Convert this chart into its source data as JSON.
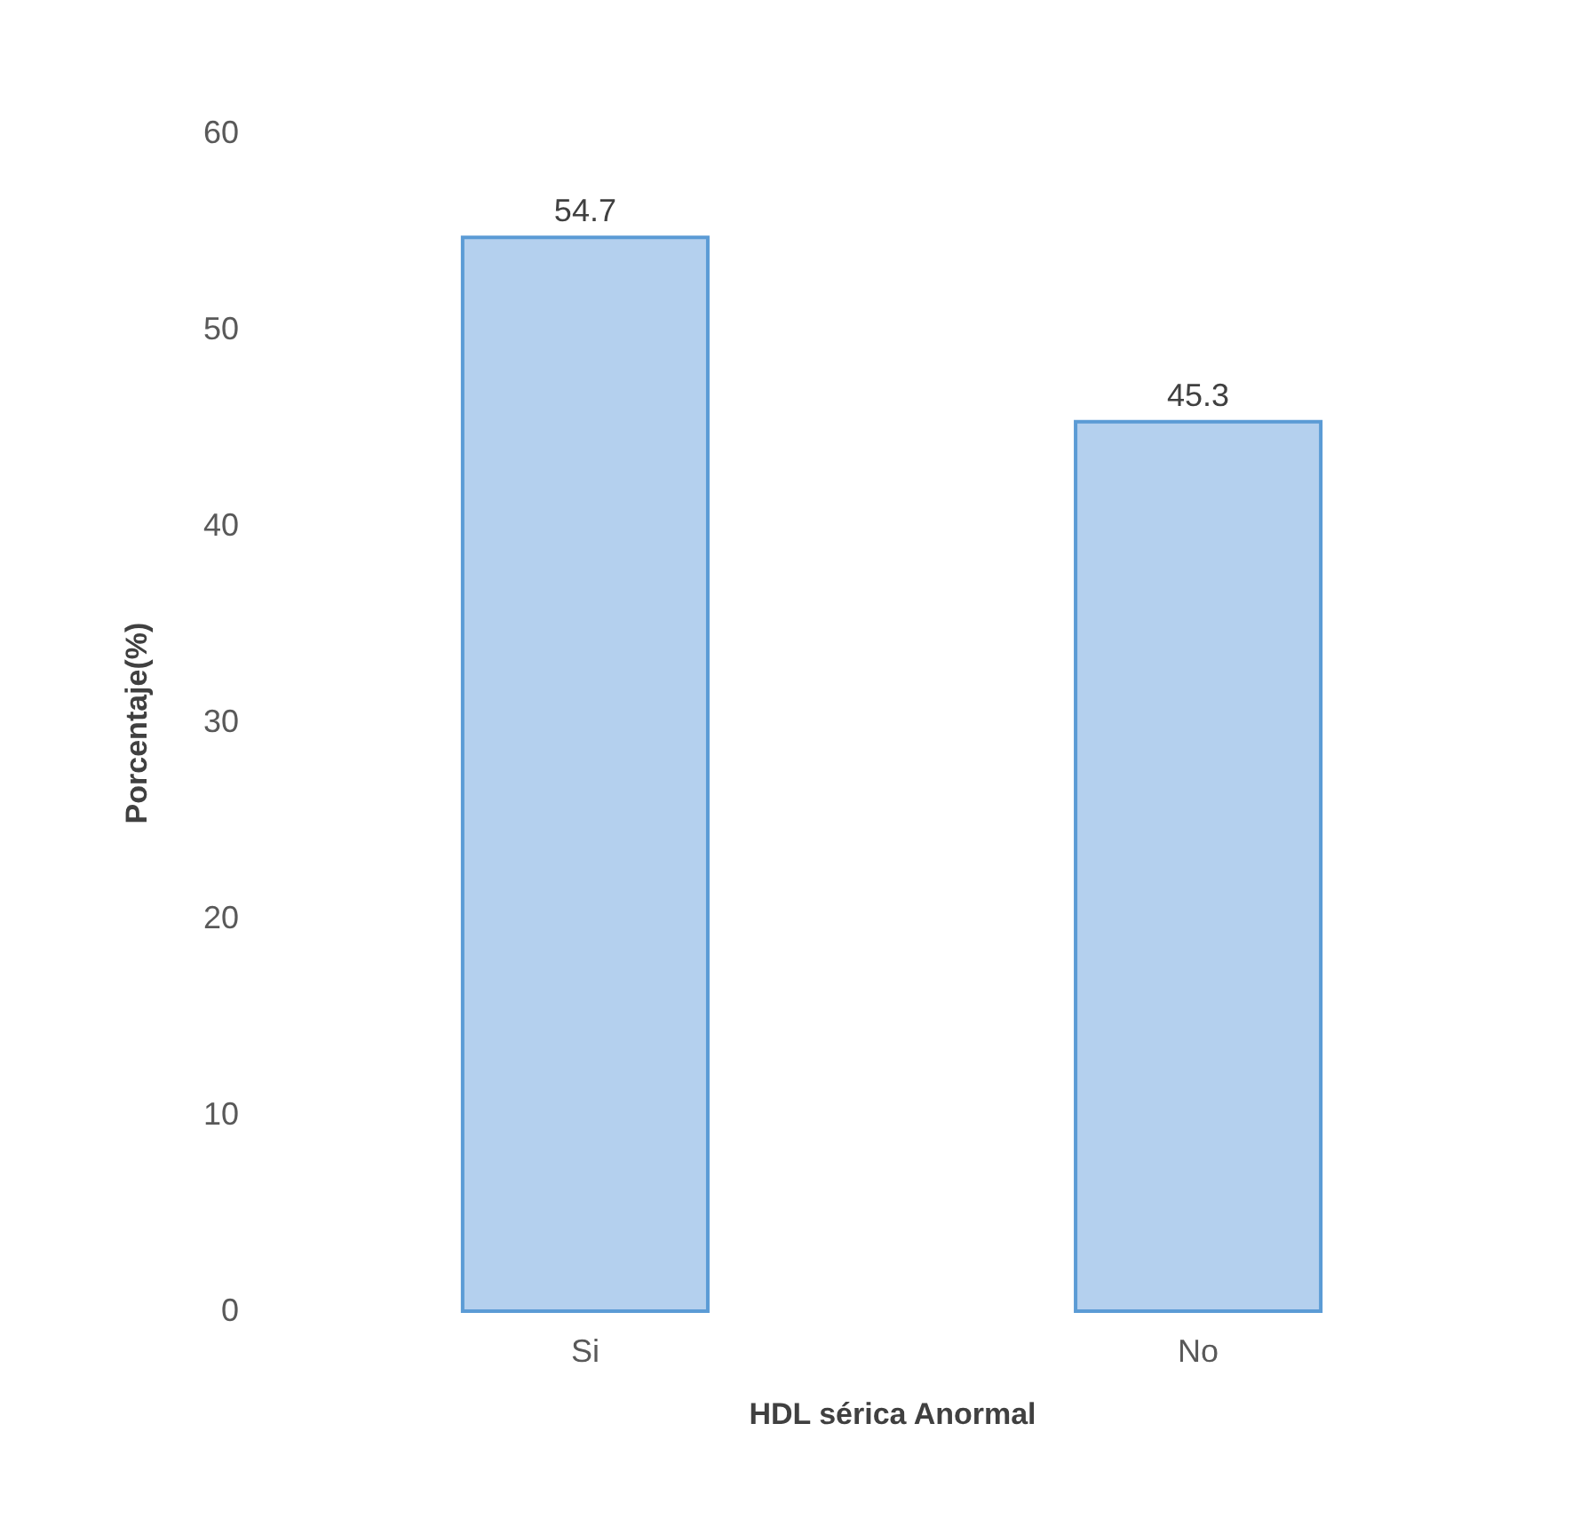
{
  "chart_data": {
    "type": "bar",
    "categories": [
      "Si",
      "No"
    ],
    "values": [
      54.7,
      45.3
    ],
    "color": "#b4d0ee",
    "xlabel": "HDL sérica Anormal",
    "ylabel": "Porcentaje(%)",
    "ylim": [
      0,
      60
    ],
    "yticks": [
      0,
      10,
      20,
      30,
      40,
      50,
      60
    ],
    "data_labels": true
  }
}
